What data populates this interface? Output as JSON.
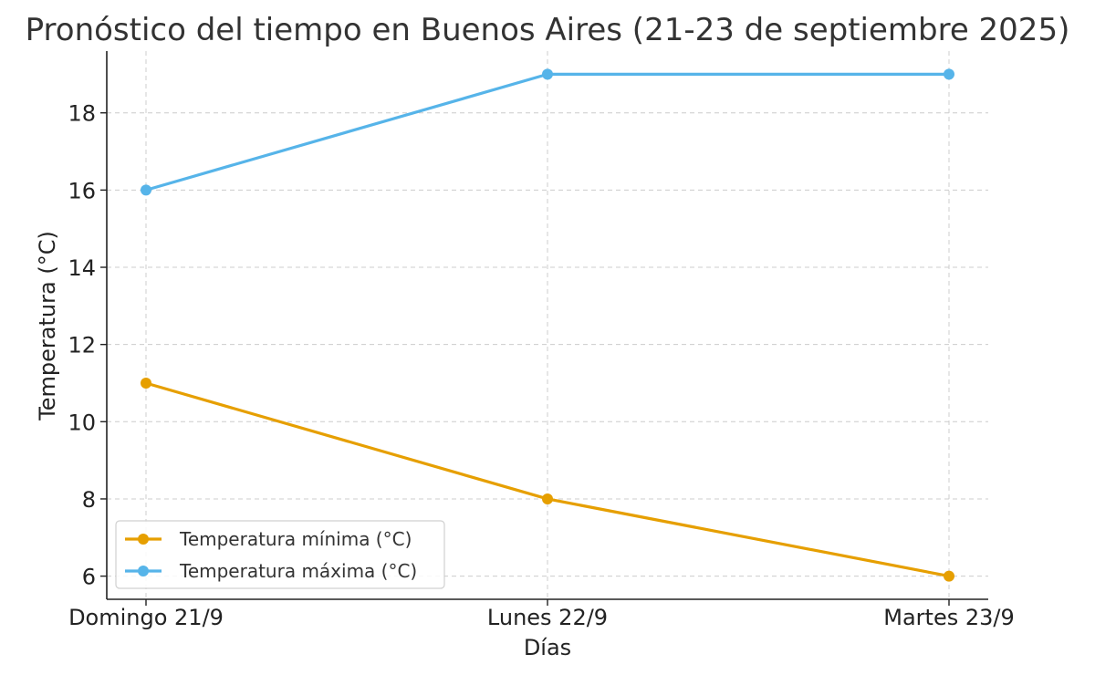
{
  "chart_data": {
    "type": "line",
    "title": "Pronóstico del tiempo en Buenos Aires (21-23 de septiembre 2025)",
    "xlabel": "Días",
    "ylabel": "Temperatura (°C)",
    "categories": [
      "Domingo 21/9",
      "Lunes 22/9",
      "Martes 23/9"
    ],
    "yticks": [
      6,
      8,
      10,
      12,
      14,
      16,
      18
    ],
    "ylim": [
      5.4,
      19.6
    ],
    "grid": true,
    "legend_position": "lower-left",
    "series": [
      {
        "name": "Temperatura mínima (°C)",
        "values": [
          11,
          8,
          6
        ],
        "color": "#E69F00"
      },
      {
        "name": "Temperatura máxima (°C)",
        "values": [
          16,
          19,
          19
        ],
        "color": "#56B4E9"
      }
    ]
  }
}
